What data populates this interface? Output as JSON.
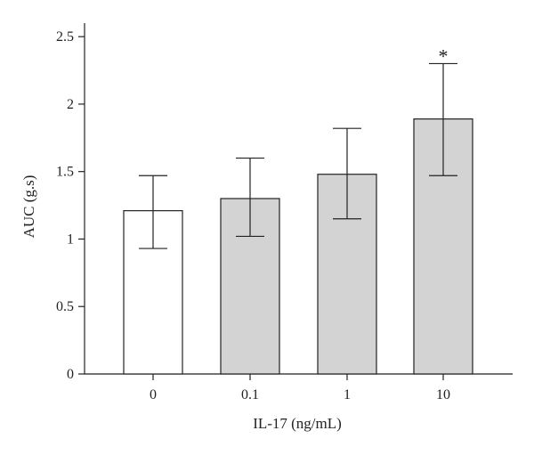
{
  "chart_data": {
    "type": "bar",
    "categories": [
      "0",
      "0.1",
      "1",
      "10"
    ],
    "values": [
      1.21,
      1.3,
      1.48,
      1.89
    ],
    "error_upper": [
      1.47,
      1.6,
      1.82,
      2.3
    ],
    "error_lower": [
      0.93,
      1.02,
      1.15,
      1.47
    ],
    "significance": [
      "",
      "",
      "",
      "*"
    ],
    "bar_fills": [
      "#ffffff",
      "#d3d3d3",
      "#d3d3d3",
      "#d3d3d3"
    ],
    "title": "",
    "xlabel": "IL-17 (ng/mL)",
    "ylabel": "AUC (g.s)",
    "ylim": [
      0,
      2.6
    ],
    "yticks": [
      {
        "value": 0,
        "label": "0"
      },
      {
        "value": 0.5,
        "label": "0.5"
      },
      {
        "value": 1,
        "label": "1"
      },
      {
        "value": 1.5,
        "label": "1.5"
      },
      {
        "value": 2,
        "label": "2"
      },
      {
        "value": 2.5,
        "label": "2.5"
      }
    ],
    "grid": false,
    "legend": "none"
  }
}
